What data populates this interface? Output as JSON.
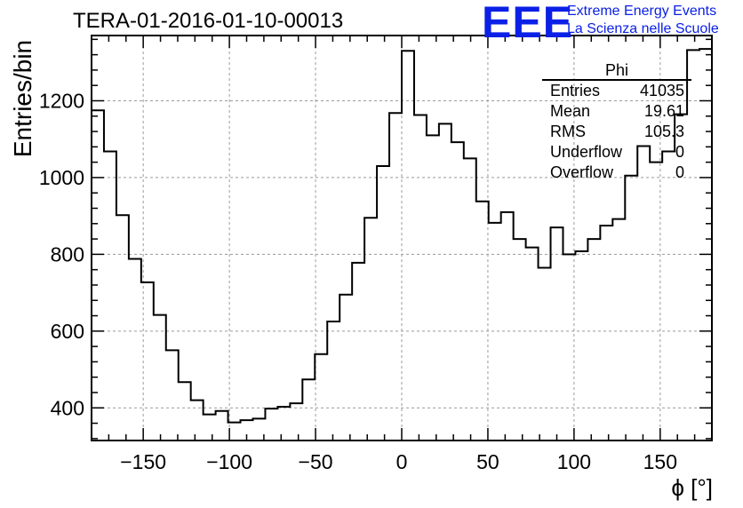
{
  "title": "TERA-01-2016-01-10-00013",
  "logo": {
    "text": "EEE",
    "line1": "Extreme Energy Events",
    "line2": "La Scienza nelle Scuole",
    "color": "#0b20e6"
  },
  "stats": {
    "title": "Phi",
    "rows": [
      {
        "key": "Entries",
        "value": "41035"
      },
      {
        "key": "Mean",
        "value": "19.61"
      },
      {
        "key": "RMS",
        "value": "105.3"
      },
      {
        "key": "Underflow",
        "value": "0"
      },
      {
        "key": "Overflow",
        "value": "0"
      }
    ]
  },
  "chart_data": {
    "type": "histogram",
    "xlabel": "ϕ [°]",
    "ylabel": "Entries/bin",
    "xlim": [
      -180,
      180
    ],
    "ylim": [
      315,
      1370
    ],
    "bin_width": 7.2,
    "bin_edges_start": -180,
    "x_ticks": [
      -150,
      -100,
      -50,
      0,
      50,
      100,
      150
    ],
    "x_tick_labels": [
      "−150",
      "−100",
      "−50",
      "0",
      "50",
      "100",
      "150"
    ],
    "y_ticks": [
      400,
      600,
      800,
      1000,
      1200
    ],
    "y_tick_labels": [
      "400",
      "600",
      "800",
      "1000",
      "1200"
    ],
    "grid": true,
    "values": [
      1175,
      1068,
      902,
      788,
      727,
      642,
      550,
      467,
      420,
      383,
      392,
      362,
      368,
      372,
      398,
      403,
      412,
      474,
      540,
      625,
      695,
      778,
      895,
      1030,
      1168,
      1330,
      1163,
      1110,
      1140,
      1092,
      1050,
      938,
      882,
      910,
      840,
      818,
      765,
      870,
      800,
      808,
      840,
      875,
      892,
      1005,
      1082,
      1040,
      1068,
      1165,
      1332,
      1335
    ]
  }
}
